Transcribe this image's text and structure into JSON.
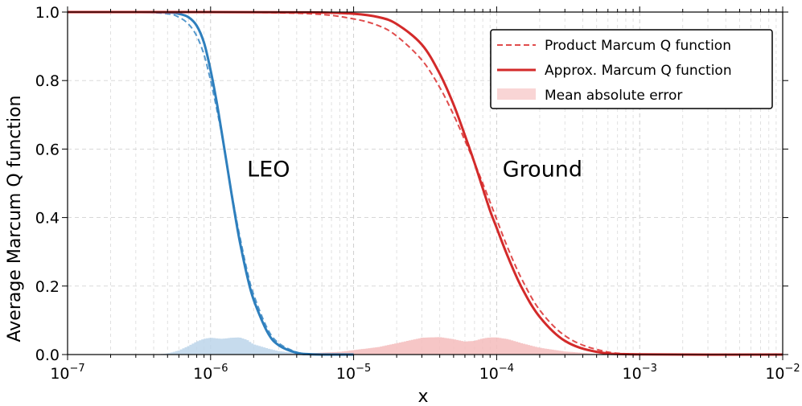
{
  "chart_data": {
    "type": "line",
    "xlabel": "x",
    "ylabel": "Average Marcum Q function",
    "xscale": "log",
    "xlim": [
      1e-07,
      0.01
    ],
    "ylim": [
      0,
      1
    ],
    "grid": true,
    "legend_position": "top-right",
    "x_ticks": [
      {
        "mant": "10",
        "exp": "−7"
      },
      {
        "mant": "10",
        "exp": "−6"
      },
      {
        "mant": "10",
        "exp": "−5"
      },
      {
        "mant": "10",
        "exp": "−4"
      },
      {
        "mant": "10",
        "exp": "−3"
      },
      {
        "mant": "10",
        "exp": "−2"
      }
    ],
    "y_ticks": [
      "0.0",
      "0.2",
      "0.4",
      "0.6",
      "0.8",
      "1.0"
    ],
    "legend": [
      {
        "label": "Product Marcum Q function",
        "style": "dashed"
      },
      {
        "label": "Approx. Marcum Q function",
        "style": "solid"
      },
      {
        "label": "Mean absolute error",
        "style": "area"
      }
    ],
    "annotations": [
      {
        "text": "LEO",
        "x": 1.8e-06,
        "y": 0.52
      },
      {
        "text": "Ground",
        "x": 0.00011,
        "y": 0.52
      }
    ],
    "colors": {
      "leo_line": "#2e7fbd",
      "leo_dashed": "#5598cc",
      "leo_error": "#bcd5ea",
      "ground_line": "#d32a2a",
      "ground_dashed": "#e04c4c",
      "ground_error": "#f4bcbc",
      "legend_error": "#f9d5d5"
    },
    "series": [
      {
        "group": "LEO",
        "kind": "product",
        "style": "dashed",
        "x": [
          1e-07,
          3e-07,
          5e-07,
          6e-07,
          7e-07,
          8e-07,
          9e-07,
          1e-06,
          1.1e-06,
          1.2e-06,
          1.3e-06,
          1.4e-06,
          1.5e-06,
          1.6e-06,
          1.8e-06,
          2e-06,
          2.5e-06,
          3e-06,
          4e-06,
          5e-06,
          7e-06,
          1e-05
        ],
        "y": [
          1.0,
          1.0,
          0.995,
          0.985,
          0.965,
          0.93,
          0.875,
          0.8,
          0.72,
          0.64,
          0.555,
          0.475,
          0.405,
          0.345,
          0.245,
          0.175,
          0.075,
          0.033,
          0.007,
          0.0015,
          0.0,
          0.0
        ]
      },
      {
        "group": "LEO",
        "kind": "approx",
        "style": "solid",
        "x": [
          1e-07,
          3e-07,
          5e-07,
          6e-07,
          7e-07,
          8e-07,
          9e-07,
          1e-06,
          1.1e-06,
          1.2e-06,
          1.3e-06,
          1.4e-06,
          1.5e-06,
          1.6e-06,
          1.8e-06,
          2e-06,
          2.5e-06,
          3e-06,
          4e-06,
          5e-06,
          7e-06,
          1e-05
        ],
        "y": [
          1.0,
          1.0,
          0.999,
          0.995,
          0.985,
          0.96,
          0.91,
          0.83,
          0.74,
          0.645,
          0.555,
          0.47,
          0.395,
          0.33,
          0.23,
          0.16,
          0.065,
          0.027,
          0.005,
          0.001,
          0.0,
          0.0
        ]
      },
      {
        "group": "Ground",
        "kind": "product",
        "style": "dashed",
        "x": [
          1e-07,
          1e-06,
          5e-06,
          1e-05,
          1.5e-05,
          2e-05,
          3e-05,
          4e-05,
          5e-05,
          6e-05,
          7e-05,
          8e-05,
          9e-05,
          0.0001,
          0.00012,
          0.00015,
          0.0002,
          0.0003,
          0.0005,
          0.001,
          0.01
        ],
        "y": [
          1.0,
          1.0,
          0.995,
          0.98,
          0.96,
          0.93,
          0.86,
          0.78,
          0.7,
          0.625,
          0.56,
          0.5,
          0.445,
          0.395,
          0.31,
          0.22,
          0.13,
          0.055,
          0.015,
          0.001,
          0.0
        ]
      },
      {
        "group": "Ground",
        "kind": "approx",
        "style": "solid",
        "x": [
          1e-07,
          1e-06,
          5e-06,
          1e-05,
          1.5e-05,
          2e-05,
          3e-05,
          4e-05,
          5e-05,
          6e-05,
          7e-05,
          8e-05,
          9e-05,
          0.0001,
          0.00012,
          0.00015,
          0.0002,
          0.0003,
          0.0005,
          0.001,
          0.01
        ],
        "y": [
          1.0,
          1.0,
          0.999,
          0.995,
          0.985,
          0.965,
          0.905,
          0.82,
          0.73,
          0.64,
          0.56,
          0.485,
          0.42,
          0.37,
          0.285,
          0.195,
          0.11,
          0.04,
          0.008,
          0.0005,
          0.0
        ]
      },
      {
        "group": "LEO",
        "kind": "error",
        "style": "area",
        "x": [
          4e-07,
          5e-07,
          6e-07,
          7e-07,
          8e-07,
          9e-07,
          1e-06,
          1.2e-06,
          1.4e-06,
          1.6e-06,
          1.8e-06,
          2e-06,
          2.5e-06,
          3e-06,
          4e-06,
          5e-06,
          6e-06,
          1e-05
        ],
        "y": [
          0.0,
          0.003,
          0.012,
          0.025,
          0.038,
          0.046,
          0.049,
          0.046,
          0.049,
          0.05,
          0.043,
          0.03,
          0.018,
          0.01,
          0.004,
          0.002,
          0.001,
          0.0
        ]
      },
      {
        "group": "Ground",
        "kind": "error",
        "style": "area",
        "x": [
          2e-06,
          4e-06,
          8e-06,
          1.5e-05,
          2e-05,
          3e-05,
          4e-05,
          5e-05,
          6e-05,
          7e-05,
          8e-05,
          9e-05,
          0.0001,
          0.00012,
          0.00015,
          0.0002,
          0.0003,
          0.0005,
          0.001
        ],
        "y": [
          0.0,
          0.002,
          0.008,
          0.022,
          0.033,
          0.049,
          0.051,
          0.045,
          0.038,
          0.04,
          0.047,
          0.05,
          0.05,
          0.045,
          0.033,
          0.02,
          0.009,
          0.002,
          0.0
        ]
      }
    ]
  }
}
